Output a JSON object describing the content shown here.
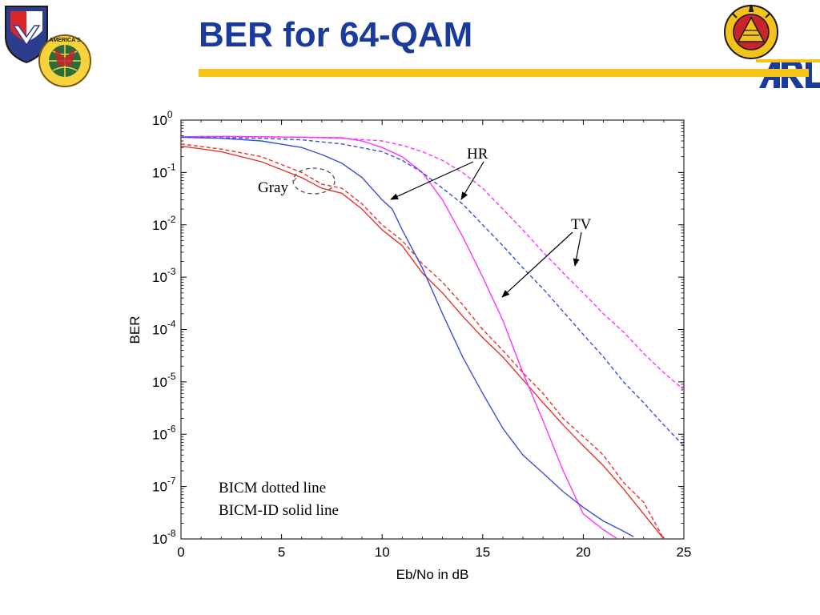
{
  "slide": {
    "title": "BER for 64-QAM"
  },
  "logos": {
    "left_badge_text": "AMERICA'S ARSENAL FOR THE BRAVE",
    "right_badge_text": "TECHNOLOGY TO WIN",
    "arl_text": "ARL"
  },
  "colors": {
    "title": "#1a3a9c",
    "rule": "#f5c518",
    "gray_mapping": "#e8322c",
    "hr_mapping": "#ff33ff",
    "tv_mapping": "#3a4fd8"
  },
  "chart_data": {
    "type": "line",
    "xlabel": "Eb/No in dB",
    "ylabel": "BER",
    "xlim": [
      0,
      25
    ],
    "ylim": [
      1e-08,
      1
    ],
    "yscale": "log",
    "x_ticks": [
      0,
      5,
      10,
      15,
      20,
      25
    ],
    "y_ticks": [
      {
        "base": "10",
        "exp": "0",
        "value": 1
      },
      {
        "base": "10",
        "exp": "-1",
        "value": 0.1
      },
      {
        "base": "10",
        "exp": "-2",
        "value": 0.01
      },
      {
        "base": "10",
        "exp": "-3",
        "value": 0.001
      },
      {
        "base": "10",
        "exp": "-4",
        "value": 0.0001
      },
      {
        "base": "10",
        "exp": "-5",
        "value": 1e-05
      },
      {
        "base": "10",
        "exp": "-6",
        "value": 1e-06
      },
      {
        "base": "10",
        "exp": "-7",
        "value": 1e-07
      },
      {
        "base": "10",
        "exp": "-8",
        "value": 1e-08
      }
    ],
    "grid": false,
    "annotations": {
      "hr": "HR",
      "tv": "TV",
      "gray": "Gray",
      "legend_line1": "BICM dotted line",
      "legend_line2": "BICM-ID solid line"
    },
    "series": [
      {
        "color": "#e8322c",
        "dash": true,
        "x": [
          0,
          2,
          4,
          6,
          7,
          8,
          9,
          10,
          11,
          12,
          13,
          14,
          15,
          16,
          17,
          18,
          19,
          20,
          21,
          22,
          23,
          24
        ],
        "y": [
          0.35,
          0.28,
          0.2,
          0.1,
          0.06,
          0.05,
          0.025,
          0.01,
          0.005,
          0.0018,
          0.0008,
          0.0003,
          0.0001,
          4e-05,
          1.5e-05,
          6e-06,
          2e-06,
          9e-07,
          4e-07,
          1.2e-07,
          5e-08,
          4e-09
        ]
      },
      {
        "color": "#e8322c",
        "dash": false,
        "x": [
          0,
          2,
          4,
          6,
          7,
          8,
          9,
          10,
          11,
          12,
          13,
          14,
          15,
          16,
          17,
          18,
          19,
          20,
          21,
          22,
          23,
          24
        ],
        "y": [
          0.32,
          0.25,
          0.16,
          0.08,
          0.05,
          0.04,
          0.02,
          0.008,
          0.004,
          0.0012,
          0.0005,
          0.00018,
          7e-05,
          3e-05,
          1.1e-05,
          4e-06,
          1.5e-06,
          6e-07,
          2.5e-07,
          9e-08,
          3e-08,
          3e-09
        ]
      },
      {
        "color": "#ff33ff",
        "dash": true,
        "x": [
          0,
          2,
          4,
          6,
          8,
          10,
          11,
          12,
          13,
          14,
          15,
          16,
          17,
          18,
          19,
          20,
          21,
          22,
          23,
          24,
          25
        ],
        "y": [
          0.48,
          0.49,
          0.48,
          0.47,
          0.45,
          0.4,
          0.33,
          0.25,
          0.17,
          0.1,
          0.05,
          0.02,
          0.008,
          0.003,
          0.0012,
          0.0005,
          0.0002,
          9e-05,
          3.5e-05,
          1.5e-05,
          7e-06
        ]
      },
      {
        "color": "#ff33ff",
        "dash": false,
        "x": [
          0,
          2,
          4,
          6,
          8,
          9,
          10,
          11,
          12,
          13,
          14,
          15,
          16,
          17,
          18,
          19,
          20,
          21,
          21.7
        ],
        "y": [
          0.48,
          0.49,
          0.48,
          0.47,
          0.46,
          0.4,
          0.3,
          0.2,
          0.1,
          0.03,
          0.006,
          0.001,
          0.00015,
          1.5e-05,
          1.8e-06,
          2e-07,
          3e-08,
          1.5e-08,
          9e-09
        ]
      },
      {
        "color": "#3a4fd8",
        "dash": true,
        "x": [
          0,
          2,
          4,
          6,
          8,
          10,
          11,
          12,
          13,
          14,
          15,
          16,
          17,
          18,
          19,
          20,
          21,
          22,
          23,
          24,
          25
        ],
        "y": [
          0.47,
          0.46,
          0.45,
          0.42,
          0.35,
          0.25,
          0.17,
          0.1,
          0.05,
          0.025,
          0.01,
          0.004,
          0.0015,
          0.0006,
          0.00022,
          8e-05,
          3e-05,
          1e-05,
          4e-06,
          1.5e-06,
          6e-07
        ]
      },
      {
        "color": "#3a4fd8",
        "dash": false,
        "x": [
          0,
          2,
          4,
          6,
          7,
          8,
          9,
          10,
          10.5,
          11,
          12,
          13,
          14,
          15,
          16,
          17,
          18,
          19,
          20,
          21,
          22,
          22.5
        ],
        "y": [
          0.47,
          0.45,
          0.4,
          0.3,
          0.22,
          0.15,
          0.08,
          0.03,
          0.02,
          0.008,
          0.0015,
          0.0002,
          3e-05,
          6e-06,
          1.3e-06,
          4e-07,
          1.8e-07,
          8e-08,
          4e-08,
          2.2e-08,
          1.4e-08,
          1.1e-08
        ]
      }
    ]
  }
}
